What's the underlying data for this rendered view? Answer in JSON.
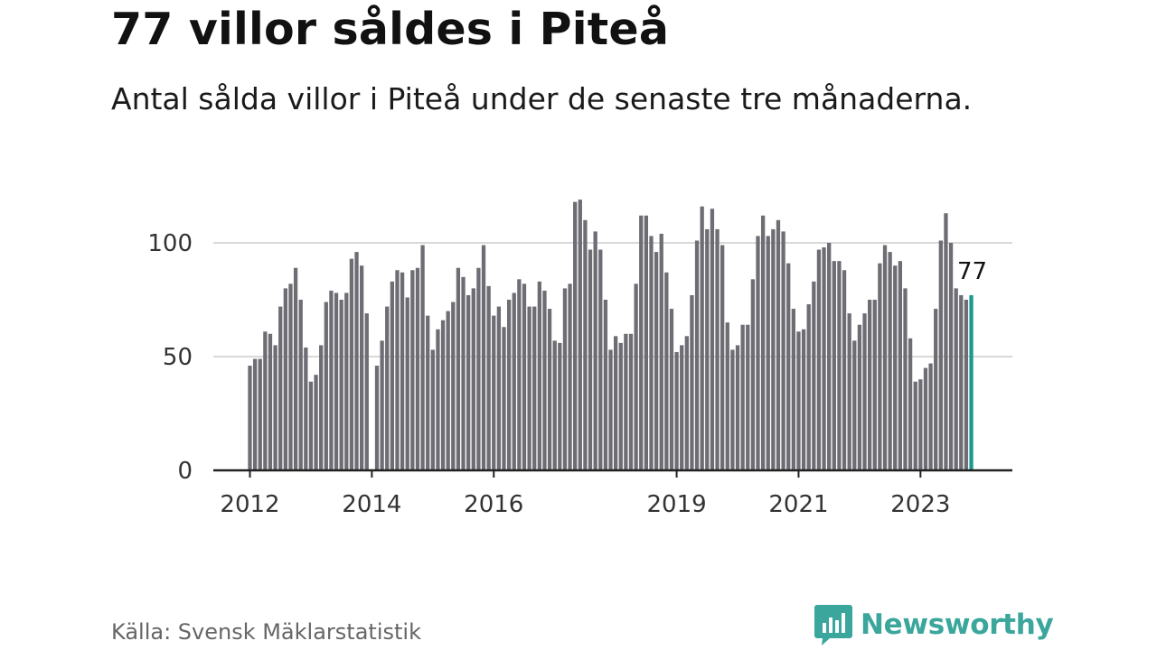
{
  "header": {
    "title": "77 villor såldes i Piteå",
    "subtitle": "Antal sålda villor i Piteå under de senaste tre månaderna."
  },
  "footer": {
    "source": "Källa: Svensk Mäklarstatistik",
    "brand": "Newsworthy",
    "brand_icon": "bar-chart-bubble-icon"
  },
  "colors": {
    "bar": "#6e6d74",
    "highlight": "#1a9a8f",
    "grid": "#d9d9d9",
    "axis": "#222222",
    "brand": "#3aa69c"
  },
  "chart_data": {
    "type": "bar",
    "title": "77 villor såldes i Piteå",
    "subtitle": "Antal sålda villor i Piteå under de senaste tre månaderna.",
    "xlabel": "",
    "ylabel": "",
    "ylim": [
      0,
      120
    ],
    "yticks": [
      0,
      50,
      100
    ],
    "grid": true,
    "x_ticks": [
      {
        "label": "2012",
        "index": 0
      },
      {
        "label": "2014",
        "index": 24
      },
      {
        "label": "2016",
        "index": 48
      },
      {
        "label": "2019",
        "index": 84
      },
      {
        "label": "2021",
        "index": 108
      },
      {
        "label": "2023",
        "index": 132
      }
    ],
    "last_value_label": "77",
    "highlight_last": true,
    "values": [
      46,
      49,
      49,
      61,
      60,
      55,
      72,
      80,
      82,
      89,
      75,
      54,
      39,
      42,
      55,
      74,
      79,
      78,
      75,
      78,
      93,
      96,
      90,
      69,
      0,
      46,
      57,
      72,
      83,
      88,
      87,
      76,
      88,
      89,
      99,
      68,
      53,
      62,
      66,
      70,
      74,
      89,
      85,
      77,
      80,
      89,
      99,
      81,
      68,
      72,
      63,
      75,
      78,
      84,
      82,
      72,
      72,
      83,
      79,
      71,
      57,
      56,
      80,
      82,
      118,
      119,
      110,
      97,
      105,
      97,
      75,
      53,
      59,
      56,
      60,
      60,
      82,
      112,
      112,
      103,
      96,
      104,
      87,
      71,
      52,
      55,
      59,
      77,
      101,
      116,
      106,
      115,
      106,
      99,
      65,
      53,
      55,
      64,
      64,
      84,
      103,
      112,
      103,
      106,
      110,
      105,
      91,
      71,
      61,
      62,
      73,
      83,
      97,
      98,
      100,
      92,
      92,
      88,
      69,
      57,
      64,
      69,
      75,
      75,
      91,
      99,
      96,
      90,
      92,
      80,
      58,
      39,
      40,
      45,
      47,
      71,
      101,
      113,
      100,
      80,
      77,
      75,
      77
    ]
  }
}
